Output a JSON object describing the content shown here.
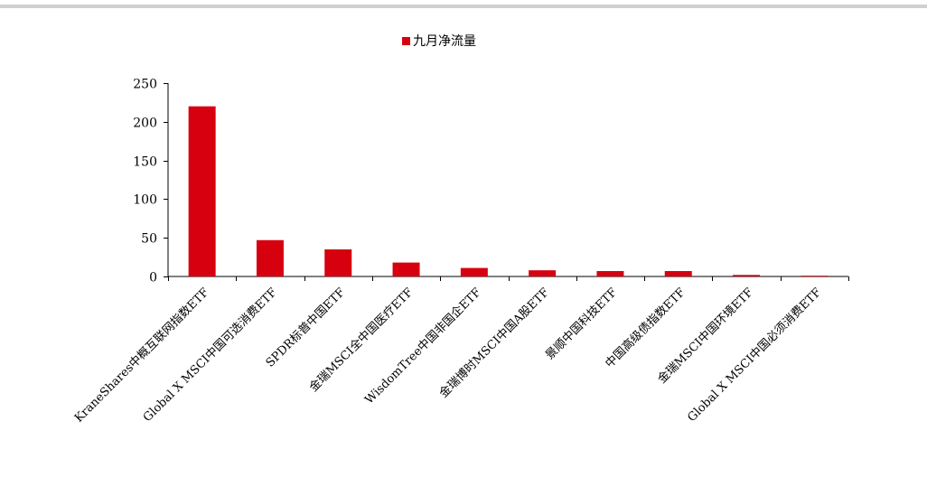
{
  "chart_data": {
    "type": "bar",
    "categories": [
      "KraneShares中概互联网指数ETF",
      "Global X MSCI中国可选消费ETF",
      "SPDR标普中国ETF",
      "金瑞MSCI全中国医疗ETF",
      "WisdomTree中国非国企ETF",
      "金瑞博时MSCI中国A股ETF",
      "景顺中国科技ETF",
      "中国高级债指数ETF",
      "金瑞MSCI中国环境ETF",
      "Global X MSCI中国必须消费ETF"
    ],
    "series": [
      {
        "name": "九月净流量",
        "values": [
          220,
          47,
          35,
          18,
          11,
          8,
          7,
          7,
          2,
          1
        ]
      }
    ],
    "ylim": [
      0,
      250
    ],
    "yticks": [
      0,
      50,
      100,
      150,
      200,
      250
    ],
    "legend_position": "top-center",
    "grid": false,
    "bar_color": "#d7000f"
  }
}
